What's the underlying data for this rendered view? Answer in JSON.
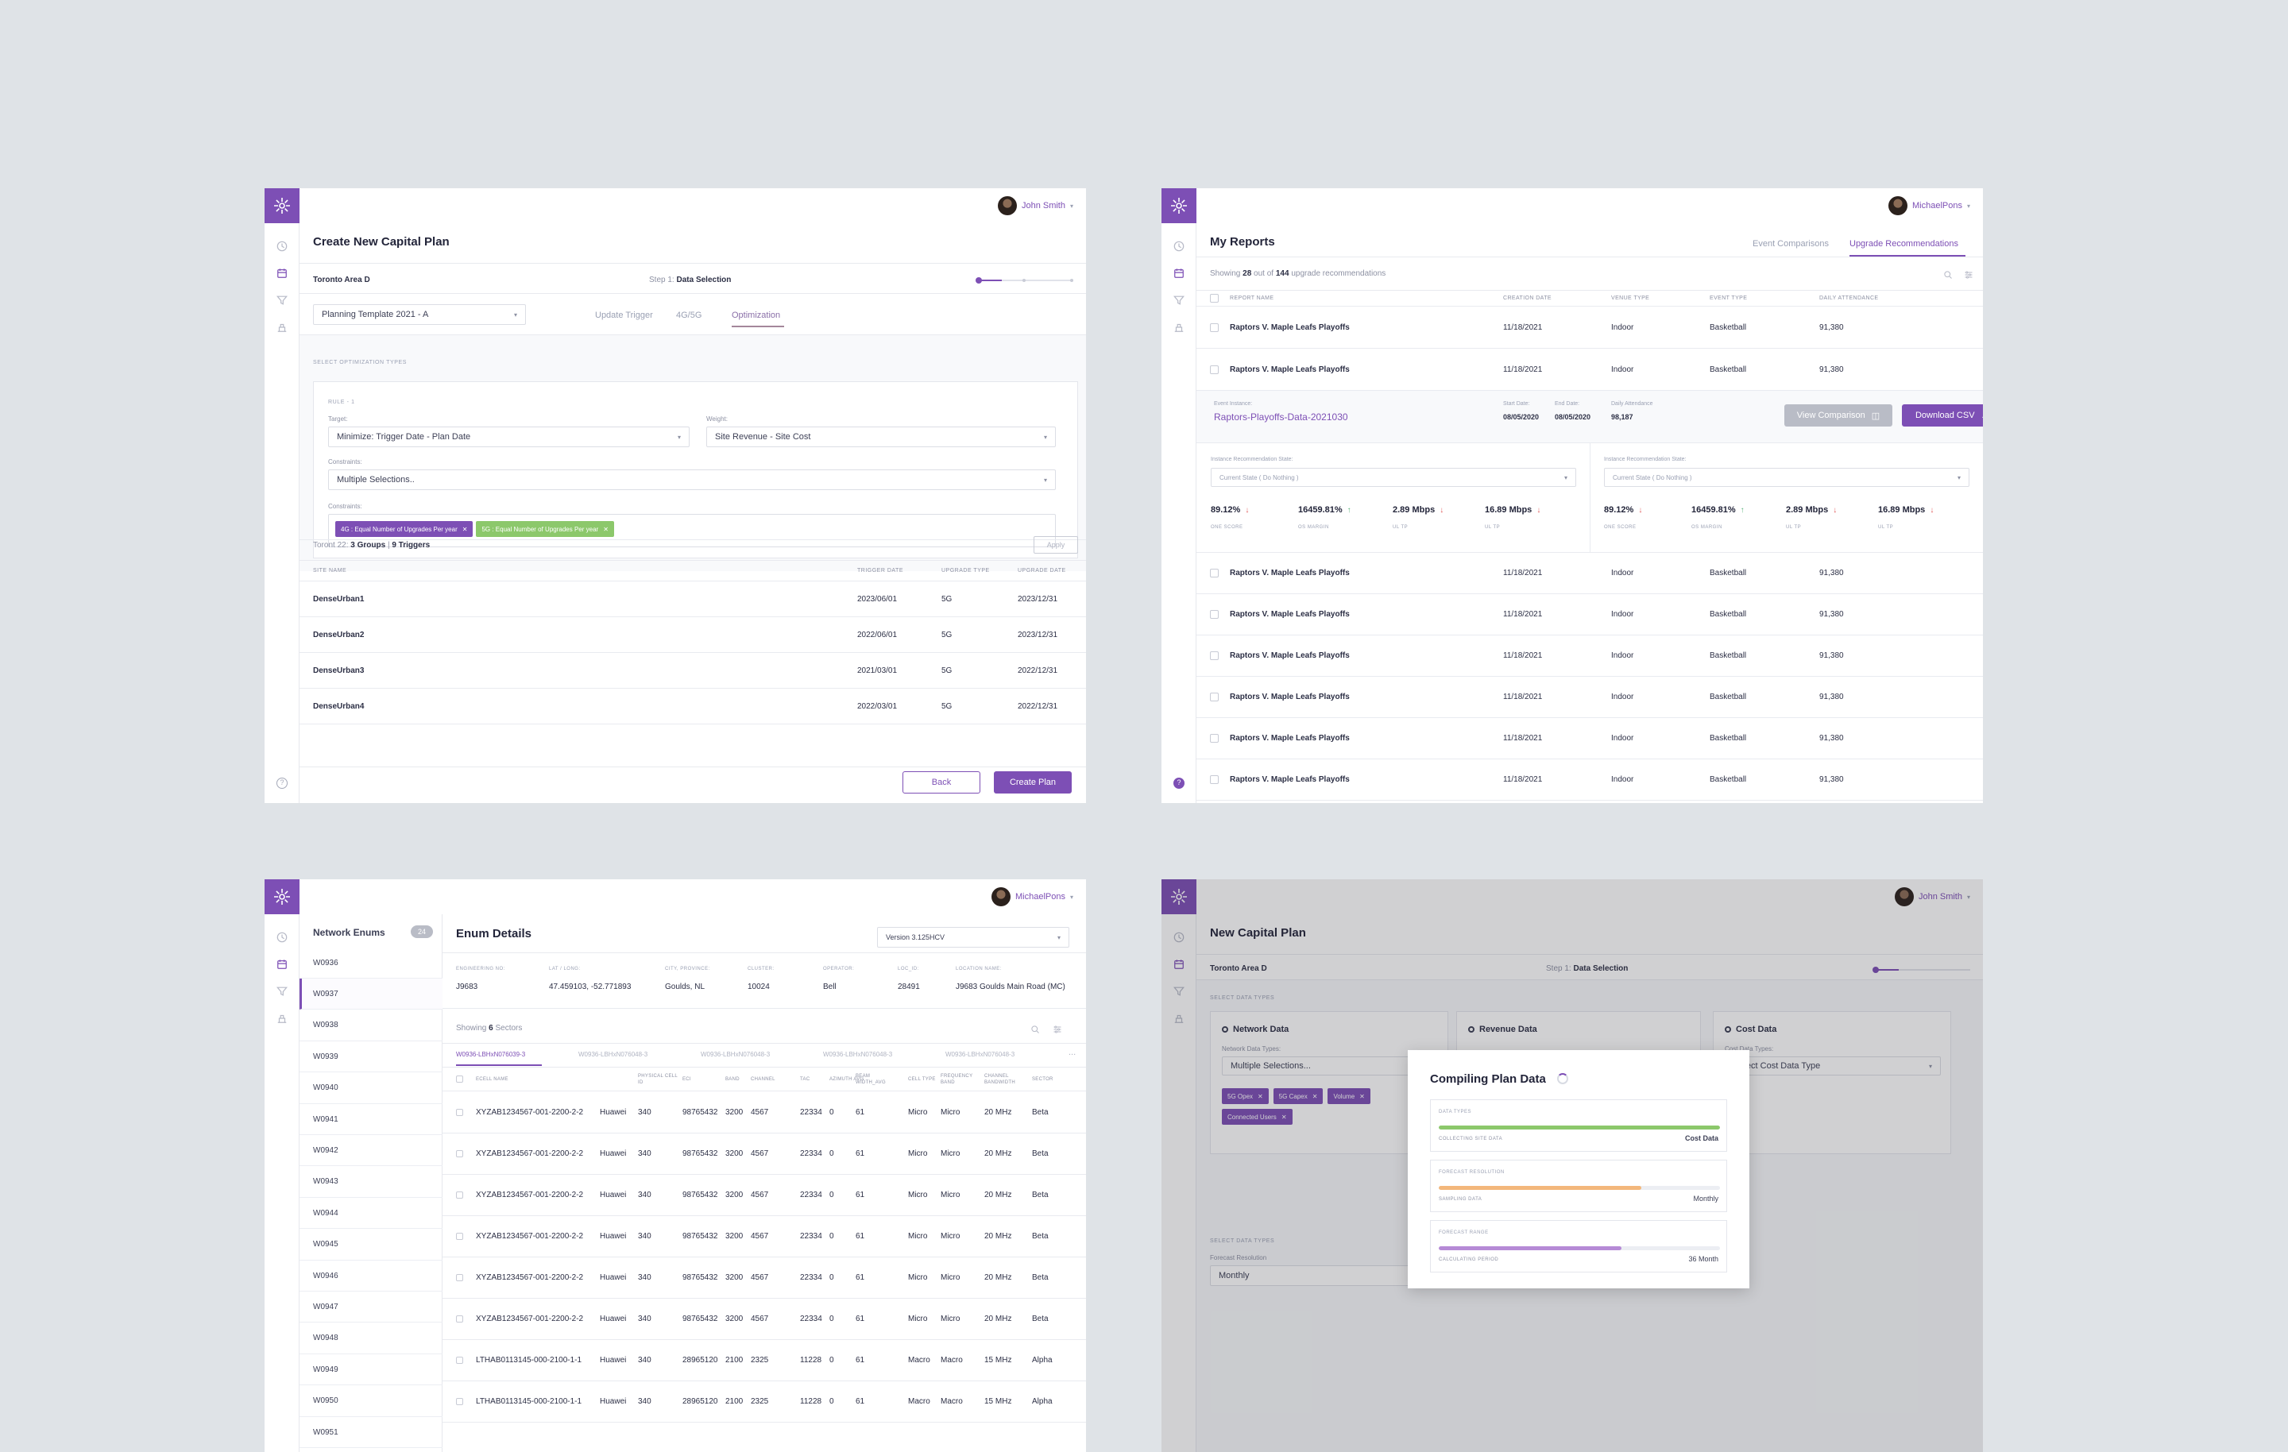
{
  "p1": {
    "user": "John Smith",
    "title": "Create New Capital Plan",
    "location": "Toronto  Area D",
    "step_prefix": "Step 1:",
    "step": "Data Selection",
    "template": "Planning Template 2021 - A",
    "tabs": [
      "Update Trigger",
      "4G/5G",
      "Optimization"
    ],
    "section": "SELECT OPTIMIZATION TYPES",
    "rule": "RULE - 1",
    "target_label": "Target:",
    "target": "Minimize: Trigger Date - Plan Date",
    "weight_label": "Weight:",
    "weight": "Site Revenue - Site Cost",
    "constraints_label": "Constraints:",
    "constraints": "Multiple Selections..",
    "constraints_label2": "Constraints:",
    "chips": [
      "4G : Equal Number of Upgrades Per year",
      "5G : Equal Number of Upgrades Per year"
    ],
    "summary_prefix": "Toront 22:",
    "groups": "3 Groups",
    "sep": "|",
    "triggers": "9 Triggers",
    "apply": "Apply",
    "columns": [
      "SITE NAME",
      "TRIGGER DATE",
      "UPGRADE TYPE",
      "UPGRADE DATE"
    ],
    "rows": [
      [
        "DenseUrban1",
        "2023/06/01",
        "5G",
        "2023/12/31"
      ],
      [
        "DenseUrban2",
        "2022/06/01",
        "5G",
        "2023/12/31"
      ],
      [
        "DenseUrban3",
        "2021/03/01",
        "5G",
        "2022/12/31"
      ],
      [
        "DenseUrban4",
        "2022/03/01",
        "5G",
        "2022/12/31"
      ]
    ],
    "back": "Back",
    "create": "Create Plan"
  },
  "p2": {
    "user": "MichaelPons",
    "title": "My Reports",
    "tabs": [
      "Event Comparisons",
      "Upgrade Recommendations"
    ],
    "showing": "Showing",
    "count": "28",
    "out_of": "out of",
    "total": "144",
    "suffix": "upgrade recommendations",
    "columns": [
      "REPORT NAME",
      "CREATION DATE",
      "VENUE TYPE",
      "EVENT TYPE",
      "DAILY ATTENDANCE"
    ],
    "row": [
      "Raptors V. Maple Leafs Playoffs",
      "11/18/2021",
      "Indoor",
      "Basketball",
      "91,380"
    ],
    "expanded": {
      "instance_label": "Event Instance:",
      "instance": "Raptors-Playoffs-Data-2021030",
      "start_label": "Start Date:",
      "start": "08/05/2020",
      "end_label": "End Date:",
      "end": "08/05/2020",
      "att_label": "Daily Attendance",
      "att": "98,187",
      "view": "View Comparison",
      "download": "Download CSV",
      "state_label": "Instance Recommendation State:",
      "state": "Current State ( Do Nothing )",
      "metrics": [
        {
          "value": "89.12%",
          "label": "ONE SCORE",
          "dir": "down"
        },
        {
          "value": "16459.81%",
          "label": "OS MARGIN",
          "dir": "up"
        },
        {
          "value": "2.89 Mbps",
          "label": "UL TP",
          "dir": "down"
        },
        {
          "value": "16.89 Mbps",
          "label": "UL TP",
          "dir": "down"
        }
      ]
    }
  },
  "p3": {
    "user": "MichaelPons",
    "enums_title": "Network Enums",
    "enums_count": "24",
    "enums": [
      "W0936",
      "W0937",
      "W0938",
      "W0939",
      "W0940",
      "W0941",
      "W0942",
      "W0943",
      "W0944",
      "W0945",
      "W0946",
      "W0947",
      "W0948",
      "W0949",
      "W0950",
      "W0951"
    ],
    "title": "Enum Details",
    "version": "Version 3.125HCV",
    "fields": [
      {
        "label": "ENGINEERING NO:",
        "value": "J9683"
      },
      {
        "label": "LAT / LONG:",
        "value": "47.459103, -52.771893"
      },
      {
        "label": "CITY, PROVINCE:",
        "value": "Goulds, NL"
      },
      {
        "label": "CLUSTER:",
        "value": "10024"
      },
      {
        "label": "OPERATOR:",
        "value": "Bell"
      },
      {
        "label": "LOC_ID:",
        "value": "28491"
      },
      {
        "label": "LOCATION NAME:",
        "value": "J9683 Goulds Main Road (MC)"
      }
    ],
    "showing": "Showing",
    "count": "6",
    "suffix": "Sectors",
    "tabs": [
      "W0936-LBHxN076039-3",
      "W0936-LBHxN076048-3",
      "W0936-LBHxN076048-3",
      "W0936-LBHxN076048-3",
      "W0936-LBHxN076048-3"
    ],
    "more": "...",
    "columns": [
      "ECELL NAME",
      "",
      "PHYSICAL CELL ID",
      "ECI",
      "BAND",
      "CHANNEL",
      "TAC",
      "AZIMUTH AVG",
      "BEAM WIDTH_AVG",
      "CELL TYPE",
      "FREQUENCY BAND",
      "CHANNEL BANDWIDTH",
      "SECTOR"
    ],
    "rows": [
      [
        "XYZAB1234567-001-2200-2-2",
        "Huawei",
        "340",
        "98765432",
        "3200",
        "4567",
        "22334",
        "0",
        "61",
        "Micro",
        "Micro",
        "20 MHz",
        "Beta"
      ],
      [
        "XYZAB1234567-001-2200-2-2",
        "Huawei",
        "340",
        "98765432",
        "3200",
        "4567",
        "22334",
        "0",
        "61",
        "Micro",
        "Micro",
        "20 MHz",
        "Beta"
      ],
      [
        "XYZAB1234567-001-2200-2-2",
        "Huawei",
        "340",
        "98765432",
        "3200",
        "4567",
        "22334",
        "0",
        "61",
        "Micro",
        "Micro",
        "20 MHz",
        "Beta"
      ],
      [
        "XYZAB1234567-001-2200-2-2",
        "Huawei",
        "340",
        "98765432",
        "3200",
        "4567",
        "22334",
        "0",
        "61",
        "Micro",
        "Micro",
        "20 MHz",
        "Beta"
      ],
      [
        "XYZAB1234567-001-2200-2-2",
        "Huawei",
        "340",
        "98765432",
        "3200",
        "4567",
        "22334",
        "0",
        "61",
        "Micro",
        "Micro",
        "20 MHz",
        "Beta"
      ],
      [
        "XYZAB1234567-001-2200-2-2",
        "Huawei",
        "340",
        "98765432",
        "3200",
        "4567",
        "22334",
        "0",
        "61",
        "Micro",
        "Micro",
        "20 MHz",
        "Beta"
      ],
      [
        "LTHAB0113145-000-2100-1-1",
        "Huawei",
        "340",
        "28965120",
        "2100",
        "2325",
        "11228",
        "0",
        "61",
        "Macro",
        "Macro",
        "15 MHz",
        "Alpha"
      ],
      [
        "LTHAB0113145-000-2100-1-1",
        "Huawei",
        "340",
        "28965120",
        "2100",
        "2325",
        "11228",
        "0",
        "61",
        "Macro",
        "Macro",
        "15 MHz",
        "Alpha"
      ]
    ]
  },
  "p4": {
    "user": "John Smith",
    "title": "New Capital Plan",
    "location": "Toronto  Area D",
    "step_prefix": "Step 1:",
    "step": "Data Selection",
    "section": "SELECT DATA TYPES",
    "cols": [
      {
        "title": "Network Data",
        "sub": "Network Data Types:",
        "value": "Multiple Selections..."
      },
      {
        "title": "Revenue Data",
        "sub": "",
        "value": ""
      },
      {
        "title": "Cost Data",
        "sub": "Cost Data Types:",
        "value": "Select Cost Data Type"
      }
    ],
    "chips": [
      "5G Opex",
      "5G Capex",
      "Volume",
      "Connected Users"
    ],
    "section2": "SELECT DATA TYPES",
    "resolution_label": "Forecast Resolution",
    "resolution": "Monthly",
    "modal": {
      "title": "Compiling Plan Data",
      "items": [
        {
          "head": "DATA TYPES",
          "sub": "COLLECTING SITE DATA",
          "value": "Cost Data",
          "progress": 1.0,
          "color": "#8cc86b"
        },
        {
          "head": "FORECAST RESOLUTION",
          "sub": "SAMPLING DATA",
          "value": "Monthly",
          "progress": 0.72,
          "color": "#f3b77b"
        },
        {
          "head": "FORECAST RANGE",
          "sub": "CALCULATING PERIOD",
          "value": "36 Month",
          "progress": 0.65,
          "color": "#b68ad6"
        }
      ]
    }
  }
}
